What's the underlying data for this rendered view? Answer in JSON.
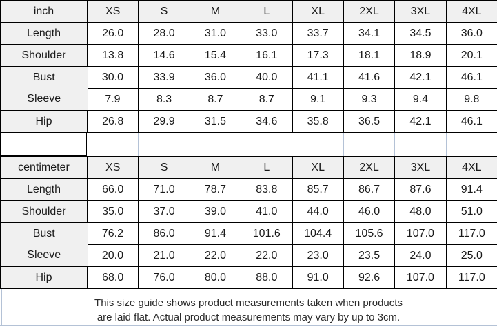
{
  "tables": [
    {
      "unit_label": "inch",
      "sizes": [
        "XS",
        "S",
        "M",
        "L",
        "XL",
        "2XL",
        "3XL",
        "4XL"
      ],
      "rows": [
        {
          "label": "Length",
          "values": [
            "26.0",
            "28.0",
            "31.0",
            "33.0",
            "33.7",
            "34.1",
            "34.5",
            "36.0"
          ]
        },
        {
          "label": "Shoulder",
          "values": [
            "13.8",
            "14.6",
            "15.4",
            "16.1",
            "17.3",
            "18.1",
            "18.9",
            "20.1"
          ]
        },
        {
          "label": "Bust",
          "values": [
            "30.0",
            "33.9",
            "36.0",
            "40.0",
            "41.1",
            "41.6",
            "42.1",
            "46.1"
          ]
        },
        {
          "label": "Sleeve",
          "values": [
            "7.9",
            "8.3",
            "8.7",
            "8.7",
            "9.1",
            "9.3",
            "9.4",
            "9.8"
          ]
        },
        {
          "label": "Hip",
          "values": [
            "26.8",
            "29.9",
            "31.5",
            "34.6",
            "35.8",
            "36.5",
            "42.1",
            "46.1"
          ]
        }
      ]
    },
    {
      "unit_label": "centimeter",
      "sizes": [
        "XS",
        "S",
        "M",
        "L",
        "XL",
        "2XL",
        "3XL",
        "4XL"
      ],
      "rows": [
        {
          "label": "Length",
          "values": [
            "66.0",
            "71.0",
            "78.7",
            "83.8",
            "85.7",
            "86.7",
            "87.6",
            "91.4"
          ]
        },
        {
          "label": "Shoulder",
          "values": [
            "35.0",
            "37.0",
            "39.0",
            "41.0",
            "44.0",
            "46.0",
            "48.0",
            "51.0"
          ]
        },
        {
          "label": "Bust",
          "values": [
            "76.2",
            "86.0",
            "91.4",
            "101.6",
            "104.4",
            "105.6",
            "107.0",
            "117.0"
          ]
        },
        {
          "label": "Sleeve",
          "values": [
            "20.0",
            "21.0",
            "22.0",
            "22.0",
            "23.0",
            "23.5",
            "24.0",
            "25.0"
          ]
        },
        {
          "label": "Hip",
          "values": [
            "68.0",
            "76.0",
            "80.0",
            "88.0",
            "91.0",
            "92.6",
            "107.0",
            "117.0"
          ]
        }
      ]
    }
  ],
  "footer": {
    "line1": "This size guide shows product measurements taken when products",
    "line2": "are laid flat. Actual product measurements may vary by up to 3cm."
  },
  "colors": {
    "table-border": "#000000",
    "header-bg": "#f0f0f0",
    "cell-bg": "#ffffff",
    "text": "#1a1a1a",
    "gridline": "#b4c2d6"
  }
}
